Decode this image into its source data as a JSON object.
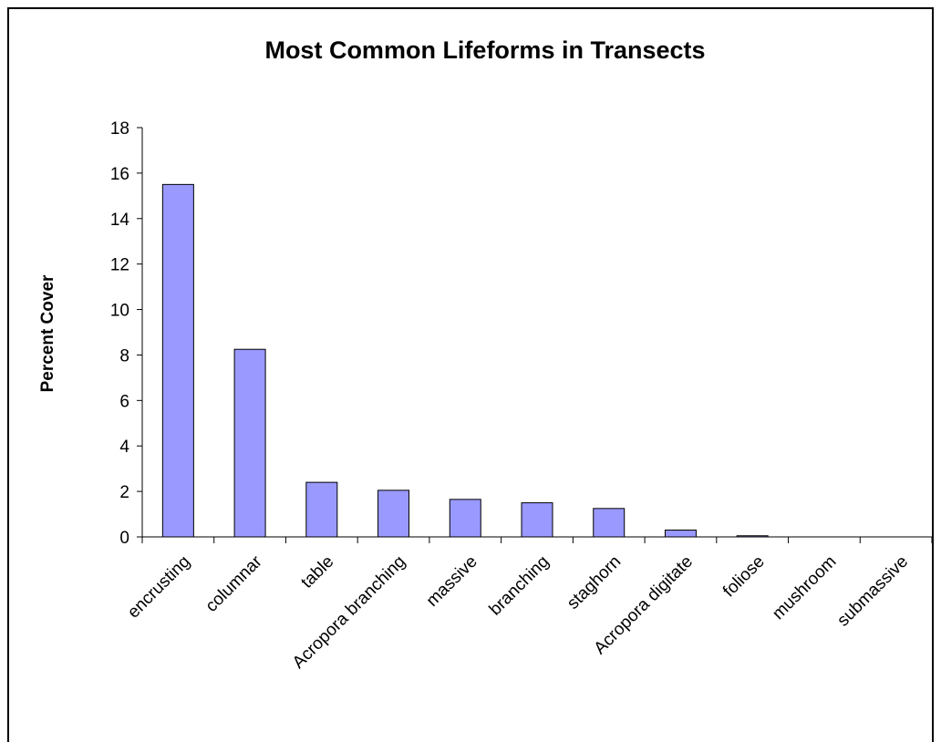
{
  "chart_data": {
    "type": "bar",
    "title": "Most Common Lifeforms in Transects",
    "xlabel": "",
    "ylabel": "Percent Cover",
    "categories": [
      "encrusting",
      "columnar",
      "table",
      "Acropora branching",
      "massive",
      "branching",
      "staghorn",
      "Acropora digitate",
      "foliose",
      "mushroom",
      "submassive"
    ],
    "values": [
      15.5,
      8.25,
      2.4,
      2.05,
      1.65,
      1.5,
      1.25,
      0.3,
      0.05,
      0,
      0
    ],
    "ylim": [
      0,
      18
    ],
    "yticks": [
      0,
      2,
      4,
      6,
      8,
      10,
      12,
      14,
      16,
      18
    ],
    "grid": false,
    "legend": "none",
    "bar_color": "#9999ff",
    "bar_edge_color": "#000000"
  }
}
